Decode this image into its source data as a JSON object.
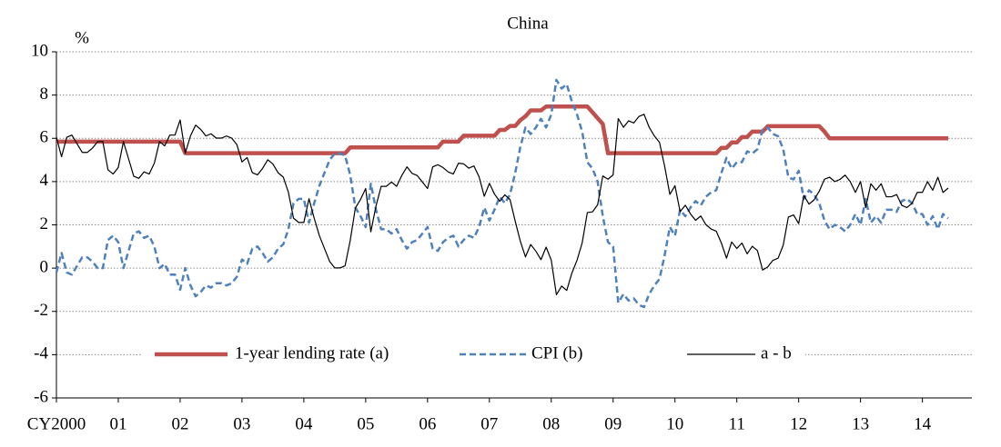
{
  "chart_data": {
    "type": "line",
    "title": "China",
    "y_label": "%",
    "x": [
      2000,
      2000.083,
      2000.167,
      2000.25,
      2000.333,
      2000.417,
      2000.5,
      2000.583,
      2000.667,
      2000.75,
      2000.833,
      2000.917,
      2001,
      2001.083,
      2001.167,
      2001.25,
      2001.333,
      2001.417,
      2001.5,
      2001.583,
      2001.667,
      2001.75,
      2001.833,
      2001.917,
      2002,
      2002.083,
      2002.167,
      2002.25,
      2002.333,
      2002.417,
      2002.5,
      2002.583,
      2002.667,
      2002.75,
      2002.833,
      2002.917,
      2003,
      2003.083,
      2003.167,
      2003.25,
      2003.333,
      2003.417,
      2003.5,
      2003.583,
      2003.667,
      2003.75,
      2003.833,
      2003.917,
      2004,
      2004.083,
      2004.167,
      2004.25,
      2004.333,
      2004.417,
      2004.5,
      2004.583,
      2004.667,
      2004.75,
      2004.833,
      2004.917,
      2005,
      2005.083,
      2005.167,
      2005.25,
      2005.333,
      2005.417,
      2005.5,
      2005.583,
      2005.667,
      2005.75,
      2005.833,
      2005.917,
      2006,
      2006.083,
      2006.167,
      2006.25,
      2006.333,
      2006.417,
      2006.5,
      2006.583,
      2006.667,
      2006.75,
      2006.833,
      2006.917,
      2007,
      2007.083,
      2007.167,
      2007.25,
      2007.333,
      2007.417,
      2007.5,
      2007.583,
      2007.667,
      2007.75,
      2007.833,
      2007.917,
      2008,
      2008.083,
      2008.167,
      2008.25,
      2008.333,
      2008.417,
      2008.5,
      2008.583,
      2008.667,
      2008.75,
      2008.833,
      2008.917,
      2009,
      2009.083,
      2009.167,
      2009.25,
      2009.333,
      2009.417,
      2009.5,
      2009.583,
      2009.667,
      2009.75,
      2009.833,
      2009.917,
      2010,
      2010.083,
      2010.167,
      2010.25,
      2010.333,
      2010.417,
      2010.5,
      2010.583,
      2010.667,
      2010.75,
      2010.833,
      2010.917,
      2011,
      2011.083,
      2011.167,
      2011.25,
      2011.333,
      2011.417,
      2011.5,
      2011.583,
      2011.667,
      2011.75,
      2011.833,
      2011.917,
      2012,
      2012.083,
      2012.167,
      2012.25,
      2012.333,
      2012.417,
      2012.5,
      2012.583,
      2012.667,
      2012.75,
      2012.833,
      2012.917,
      2013,
      2013.083,
      2013.167,
      2013.25,
      2013.333,
      2013.417,
      2013.5,
      2013.583,
      2013.667,
      2013.75,
      2013.833,
      2013.917,
      2014,
      2014.083,
      2014.167,
      2014.25,
      2014.333,
      2014.417
    ],
    "series": [
      {
        "name": "1-year lending rate (a)",
        "color": "#c0504d",
        "line_style": "solid",
        "values": [
          5.85,
          5.85,
          5.85,
          5.85,
          5.85,
          5.85,
          5.85,
          5.85,
          5.85,
          5.85,
          5.85,
          5.85,
          5.85,
          5.85,
          5.85,
          5.85,
          5.85,
          5.85,
          5.85,
          5.85,
          5.85,
          5.85,
          5.85,
          5.85,
          5.85,
          5.31,
          5.31,
          5.31,
          5.31,
          5.31,
          5.31,
          5.31,
          5.31,
          5.31,
          5.31,
          5.31,
          5.31,
          5.31,
          5.31,
          5.31,
          5.31,
          5.31,
          5.31,
          5.31,
          5.31,
          5.31,
          5.31,
          5.31,
          5.31,
          5.31,
          5.31,
          5.31,
          5.31,
          5.31,
          5.31,
          5.31,
          5.31,
          5.58,
          5.58,
          5.58,
          5.58,
          5.58,
          5.58,
          5.58,
          5.58,
          5.58,
          5.58,
          5.58,
          5.58,
          5.58,
          5.58,
          5.58,
          5.58,
          5.58,
          5.58,
          5.85,
          5.85,
          5.85,
          5.85,
          6.12,
          6.12,
          6.12,
          6.12,
          6.12,
          6.12,
          6.12,
          6.39,
          6.39,
          6.57,
          6.57,
          6.84,
          7.02,
          7.29,
          7.29,
          7.29,
          7.47,
          7.47,
          7.47,
          7.47,
          7.47,
          7.47,
          7.47,
          7.47,
          7.47,
          7.2,
          6.93,
          6.66,
          5.31,
          5.31,
          5.31,
          5.31,
          5.31,
          5.31,
          5.31,
          5.31,
          5.31,
          5.31,
          5.31,
          5.31,
          5.31,
          5.31,
          5.31,
          5.31,
          5.31,
          5.31,
          5.31,
          5.31,
          5.31,
          5.31,
          5.56,
          5.56,
          5.81,
          5.81,
          6.06,
          6.06,
          6.31,
          6.31,
          6.31,
          6.56,
          6.56,
          6.56,
          6.56,
          6.56,
          6.56,
          6.56,
          6.56,
          6.56,
          6.56,
          6.56,
          6.31,
          6,
          6,
          6,
          6,
          6,
          6,
          6,
          6,
          6,
          6,
          6,
          6,
          6,
          6,
          6,
          6,
          6,
          6,
          6,
          6,
          6,
          6,
          6,
          6
        ]
      },
      {
        "name": "CPI (b)",
        "color": "#4f81bd",
        "line_style": "dashed",
        "values": [
          -0.2,
          0.7,
          -0.2,
          -0.3,
          0.1,
          0.5,
          0.5,
          0.3,
          0,
          0,
          1.3,
          1.5,
          1.2,
          0,
          0.8,
          1.6,
          1.7,
          1.4,
          1.5,
          1.0,
          0,
          0.2,
          -0.3,
          -0.3,
          -1.0,
          0,
          -0.8,
          -1.3,
          -1.1,
          -0.8,
          -0.9,
          -0.7,
          -0.7,
          -0.8,
          -0.7,
          -0.4,
          0.4,
          0.2,
          0.9,
          1.0,
          0.7,
          0.3,
          0.5,
          0.9,
          1.1,
          1.8,
          3.0,
          3.2,
          3.2,
          2.1,
          3.0,
          3.8,
          4.4,
          5.0,
          5.3,
          5.3,
          5.2,
          4.3,
          2.8,
          2.4,
          1.9,
          3.9,
          2.7,
          1.8,
          1.8,
          1.6,
          1.8,
          1.3,
          0.9,
          1.2,
          1.3,
          1.6,
          1.9,
          0.9,
          0.8,
          1.2,
          1.4,
          1.5,
          1.0,
          1.3,
          1.5,
          1.4,
          1.9,
          2.8,
          2.2,
          2.7,
          3.3,
          3.0,
          3.4,
          4.4,
          5.6,
          6.5,
          6.2,
          6.5,
          6.9,
          6.5,
          7.1,
          8.7,
          8.3,
          8.5,
          7.7,
          7.1,
          6.3,
          4.9,
          4.6,
          4.0,
          2.4,
          1.2,
          1.0,
          -1.6,
          -1.2,
          -1.5,
          -1.4,
          -1.7,
          -1.8,
          -1.2,
          -0.8,
          -0.5,
          0.6,
          1.9,
          1.5,
          2.7,
          2.4,
          2.8,
          3.1,
          2.9,
          3.3,
          3.5,
          3.6,
          4.4,
          5.1,
          4.6,
          4.9,
          4.9,
          5.4,
          5.3,
          5.5,
          6.4,
          6.5,
          6.2,
          6.1,
          5.5,
          4.2,
          4.1,
          4.5,
          3.2,
          3.6,
          3.4,
          3.0,
          2.2,
          1.8,
          2.0,
          1.9,
          1.7,
          2.0,
          2.5,
          2.0,
          3.2,
          2.1,
          2.4,
          2.1,
          2.7,
          2.7,
          2.6,
          3.1,
          3.2,
          3.0,
          2.5,
          2.5,
          2.0,
          2.4,
          1.8,
          2.5,
          2.3
        ]
      },
      {
        "name": "a - b",
        "color": "#000000",
        "line_style": "solid",
        "values": [
          6.05,
          5.15,
          6.05,
          6.15,
          5.75,
          5.35,
          5.35,
          5.55,
          5.85,
          5.85,
          4.55,
          4.35,
          4.65,
          5.85,
          5.05,
          4.25,
          4.15,
          4.45,
          4.35,
          4.85,
          5.85,
          5.65,
          6.15,
          6.15,
          6.85,
          5.31,
          6.11,
          6.61,
          6.41,
          6.11,
          6.21,
          6.01,
          6.01,
          6.11,
          6.01,
          5.71,
          4.91,
          5.11,
          4.41,
          4.31,
          4.61,
          5.01,
          4.81,
          4.41,
          4.21,
          3.51,
          2.31,
          2.11,
          2.11,
          3.21,
          2.31,
          1.51,
          0.91,
          0.31,
          0.01,
          0.01,
          0.11,
          1.28,
          2.78,
          3.18,
          3.68,
          1.68,
          2.88,
          3.78,
          3.78,
          3.98,
          3.78,
          4.28,
          4.68,
          4.38,
          4.28,
          3.98,
          3.68,
          4.68,
          4.78,
          4.65,
          4.45,
          4.35,
          4.85,
          4.82,
          4.62,
          4.72,
          4.22,
          3.32,
          3.92,
          3.42,
          3.09,
          3.39,
          3.17,
          2.17,
          1.24,
          0.52,
          1.09,
          0.79,
          0.39,
          0.97,
          0.37,
          -1.23,
          -0.83,
          -1.03,
          -0.23,
          0.37,
          1.17,
          2.57,
          2.6,
          2.93,
          4.26,
          4.11,
          4.31,
          6.91,
          6.51,
          6.81,
          6.71,
          7.01,
          7.11,
          6.51,
          6.11,
          5.81,
          4.71,
          3.41,
          3.81,
          2.61,
          2.91,
          2.51,
          2.21,
          2.41,
          2.01,
          1.81,
          1.71,
          1.16,
          0.46,
          1.21,
          0.91,
          1.16,
          0.66,
          1.01,
          0.81,
          -0.09,
          0.06,
          0.36,
          0.46,
          1.06,
          2.36,
          2.46,
          2.06,
          3.36,
          2.96,
          3.16,
          3.56,
          4.11,
          4.2,
          4.0,
          4.1,
          4.3,
          4.0,
          3.5,
          4.0,
          2.8,
          3.9,
          3.6,
          3.9,
          3.3,
          3.3,
          3.4,
          2.9,
          2.8,
          3.0,
          3.5,
          3.5,
          4.0,
          3.6,
          4.2,
          3.5,
          3.7
        ]
      }
    ],
    "xlim": [
      2000,
      2014.8
    ],
    "xticks": [
      {
        "value": 2000,
        "label": "CY2000"
      },
      {
        "value": 2001,
        "label": "01"
      },
      {
        "value": 2002,
        "label": "02"
      },
      {
        "value": 2003,
        "label": "03"
      },
      {
        "value": 2004,
        "label": "04"
      },
      {
        "value": 2005,
        "label": "05"
      },
      {
        "value": 2006,
        "label": "06"
      },
      {
        "value": 2007,
        "label": "07"
      },
      {
        "value": 2008,
        "label": "08"
      },
      {
        "value": 2009,
        "label": "09"
      },
      {
        "value": 2010,
        "label": "10"
      },
      {
        "value": 2011,
        "label": "11"
      },
      {
        "value": 2012,
        "label": "12"
      },
      {
        "value": 2013,
        "label": "13"
      },
      {
        "value": 2014,
        "label": "14"
      }
    ],
    "ylim": [
      -6,
      10
    ],
    "yticks": [
      -6,
      -4,
      -2,
      0,
      2,
      4,
      6,
      8,
      10
    ],
    "grid": true,
    "legend": "bottom"
  }
}
